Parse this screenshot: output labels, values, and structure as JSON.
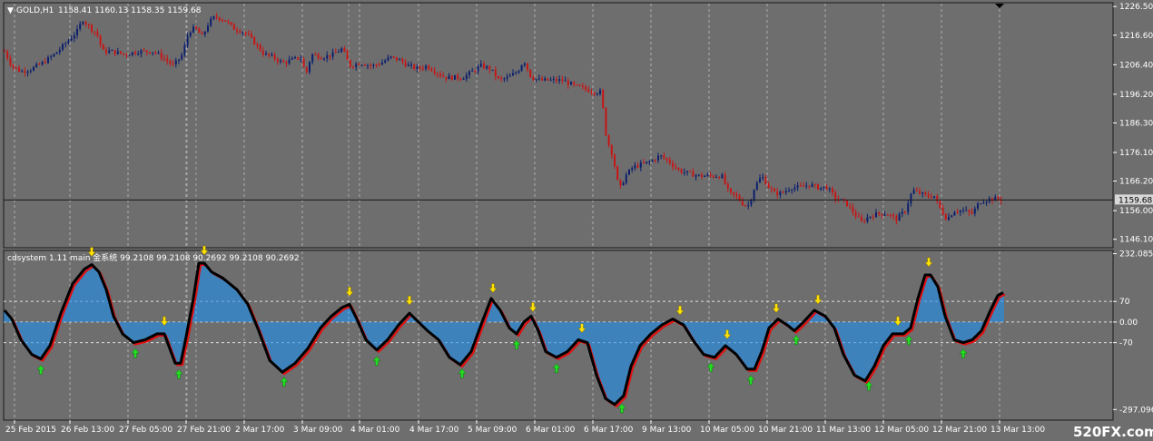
{
  "window": {
    "symbol_timeframe": "GOLD,H1",
    "ohlc": "1158.41 1160.13 1158.35 1159.68",
    "dropdown_glyph": "▼"
  },
  "indicator": {
    "label": "cdsystem 1.11 main 金系统 99.2108 99.2108 90.2692 99.2108 90.2692"
  },
  "watermark": "520FX.com",
  "colors": {
    "background": "#6e6e6e",
    "grid": "#c8c8c8",
    "bull_candle": "#0b1f6e",
    "bear_candle": "#c81515",
    "histogram": "#1f8ff0",
    "main_line": "#000000",
    "signal_line": "#e01010",
    "sell_arrow": "#ffe100",
    "buy_arrow": "#22dd22",
    "price_label_bg": "#d8d8d8"
  },
  "chart_data": [
    {
      "type": "candlestick",
      "title": "GOLD,H1",
      "ylim": [
        1143.5,
        1227.5
      ],
      "y_ticks": [
        "1226.50",
        "1216.60",
        "1206.40",
        "1196.20",
        "1186.30",
        "1176.10",
        "1166.20",
        "1156.00",
        "1146.10"
      ],
      "current_price_label": "1159.68",
      "current_price": 1159.68,
      "grid": true,
      "close_path": [
        [
          0,
          1211
        ],
        [
          8,
          1206
        ],
        [
          18,
          1204
        ],
        [
          30,
          1205
        ],
        [
          42,
          1207
        ],
        [
          55,
          1210
        ],
        [
          68,
          1214
        ],
        [
          80,
          1218
        ],
        [
          86,
          1222
        ],
        [
          95,
          1219
        ],
        [
          102,
          1217
        ],
        [
          108,
          1211
        ],
        [
          118,
          1211
        ],
        [
          132,
          1210
        ],
        [
          148,
          1211
        ],
        [
          165,
          1211
        ],
        [
          178,
          1208
        ],
        [
          186,
          1206
        ],
        [
          196,
          1210
        ],
        [
          203,
          1218
        ],
        [
          210,
          1219
        ],
        [
          218,
          1216
        ],
        [
          225,
          1221
        ],
        [
          232,
          1223
        ],
        [
          242,
          1222
        ],
        [
          252,
          1219
        ],
        [
          262,
          1218
        ],
        [
          270,
          1216
        ],
        [
          278,
          1213
        ],
        [
          286,
          1210
        ],
        [
          296,
          1209
        ],
        [
          306,
          1207
        ],
        [
          316,
          1208
        ],
        [
          326,
          1209
        ],
        [
          332,
          1203
        ],
        [
          338,
          1210
        ],
        [
          350,
          1209
        ],
        [
          362,
          1210
        ],
        [
          372,
          1212
        ],
        [
          380,
          1206
        ],
        [
          392,
          1207
        ],
        [
          405,
          1206
        ],
        [
          415,
          1207
        ],
        [
          425,
          1209
        ],
        [
          435,
          1208
        ],
        [
          445,
          1206
        ],
        [
          455,
          1205
        ],
        [
          465,
          1206
        ],
        [
          475,
          1204
        ],
        [
          485,
          1202
        ],
        [
          495,
          1202
        ],
        [
          505,
          1202
        ],
        [
          515,
          1204
        ],
        [
          525,
          1206
        ],
        [
          535,
          1205
        ],
        [
          545,
          1201
        ],
        [
          555,
          1202
        ],
        [
          565,
          1204
        ],
        [
          572,
          1208
        ],
        [
          580,
          1202
        ],
        [
          590,
          1201
        ],
        [
          600,
          1201
        ],
        [
          615,
          1201
        ],
        [
          628,
          1199
        ],
        [
          640,
          1198
        ],
        [
          650,
          1197
        ],
        [
          657,
          1197
        ],
        [
          663,
          1181
        ],
        [
          670,
          1175
        ],
        [
          677,
          1163
        ],
        [
          684,
          1168
        ],
        [
          692,
          1171
        ],
        [
          702,
          1172
        ],
        [
          712,
          1173
        ],
        [
          722,
          1175
        ],
        [
          732,
          1173
        ],
        [
          742,
          1170
        ],
        [
          752,
          1169
        ],
        [
          765,
          1168
        ],
        [
          780,
          1168
        ],
        [
          790,
          1168
        ],
        [
          798,
          1162
        ],
        [
          806,
          1161
        ],
        [
          814,
          1158
        ],
        [
          820,
          1158
        ],
        [
          826,
          1164
        ],
        [
          834,
          1168
        ],
        [
          842,
          1164
        ],
        [
          848,
          1162
        ],
        [
          856,
          1162
        ],
        [
          866,
          1164
        ],
        [
          876,
          1164
        ],
        [
          886,
          1165
        ],
        [
          896,
          1164
        ],
        [
          906,
          1164
        ],
        [
          916,
          1160
        ],
        [
          926,
          1159
        ],
        [
          936,
          1155
        ],
        [
          944,
          1152
        ],
        [
          952,
          1154
        ],
        [
          962,
          1155
        ],
        [
          972,
          1155
        ],
        [
          982,
          1153
        ],
        [
          992,
          1156
        ],
        [
          1000,
          1163
        ],
        [
          1008,
          1162
        ],
        [
          1016,
          1161
        ],
        [
          1024,
          1161
        ],
        [
          1030,
          1157
        ],
        [
          1038,
          1153
        ],
        [
          1046,
          1156
        ],
        [
          1056,
          1156
        ],
        [
          1066,
          1155
        ],
        [
          1074,
          1159
        ],
        [
          1084,
          1160
        ],
        [
          1094,
          1160
        ],
        [
          1100,
          1159.68
        ]
      ]
    },
    {
      "type": "oscillator",
      "title": "cdsystem 1.11",
      "ylim": [
        -330,
        240
      ],
      "y_ticks": [
        "232.0856",
        "70",
        "0.00",
        "-70",
        "-297.0963"
      ],
      "levels": [
        70,
        0,
        -70
      ],
      "grid": true,
      "main_line": [
        [
          0,
          40
        ],
        [
          8,
          10
        ],
        [
          18,
          -60
        ],
        [
          30,
          -110
        ],
        [
          40,
          -125
        ],
        [
          50,
          -80
        ],
        [
          62,
          30
        ],
        [
          75,
          130
        ],
        [
          88,
          180
        ],
        [
          96,
          195
        ],
        [
          104,
          170
        ],
        [
          112,
          110
        ],
        [
          120,
          20
        ],
        [
          130,
          -40
        ],
        [
          142,
          -70
        ],
        [
          155,
          -60
        ],
        [
          168,
          -40
        ],
        [
          176,
          -40
        ],
        [
          182,
          -90
        ],
        [
          188,
          -140
        ],
        [
          194,
          -140
        ],
        [
          200,
          -50
        ],
        [
          208,
          80
        ],
        [
          214,
          200
        ],
        [
          220,
          200
        ],
        [
          228,
          170
        ],
        [
          240,
          150
        ],
        [
          256,
          110
        ],
        [
          268,
          60
        ],
        [
          280,
          -30
        ],
        [
          292,
          -130
        ],
        [
          306,
          -170
        ],
        [
          320,
          -140
        ],
        [
          334,
          -90
        ],
        [
          348,
          -20
        ],
        [
          360,
          20
        ],
        [
          372,
          50
        ],
        [
          380,
          60
        ],
        [
          388,
          10
        ],
        [
          398,
          -60
        ],
        [
          410,
          -95
        ],
        [
          422,
          -60
        ],
        [
          434,
          -10
        ],
        [
          446,
          30
        ],
        [
          456,
          0
        ],
        [
          466,
          -30
        ],
        [
          478,
          -60
        ],
        [
          490,
          -120
        ],
        [
          502,
          -145
        ],
        [
          514,
          -100
        ],
        [
          526,
          0
        ],
        [
          536,
          80
        ],
        [
          546,
          40
        ],
        [
          556,
          -20
        ],
        [
          564,
          -40
        ],
        [
          572,
          0
        ],
        [
          580,
          20
        ],
        [
          588,
          -30
        ],
        [
          596,
          -100
        ],
        [
          608,
          -120
        ],
        [
          620,
          -100
        ],
        [
          632,
          -60
        ],
        [
          642,
          -70
        ],
        [
          652,
          -180
        ],
        [
          662,
          -260
        ],
        [
          672,
          -280
        ],
        [
          682,
          -250
        ],
        [
          690,
          -150
        ],
        [
          700,
          -80
        ],
        [
          712,
          -40
        ],
        [
          724,
          -10
        ],
        [
          736,
          10
        ],
        [
          748,
          -10
        ],
        [
          758,
          -60
        ],
        [
          770,
          -110
        ],
        [
          782,
          -120
        ],
        [
          794,
          -80
        ],
        [
          806,
          -110
        ],
        [
          818,
          -160
        ],
        [
          826,
          -160
        ],
        [
          834,
          -100
        ],
        [
          842,
          -20
        ],
        [
          852,
          10
        ],
        [
          862,
          -10
        ],
        [
          870,
          -30
        ],
        [
          880,
          0
        ],
        [
          892,
          40
        ],
        [
          904,
          20
        ],
        [
          914,
          -20
        ],
        [
          924,
          -110
        ],
        [
          936,
          -180
        ],
        [
          948,
          -200
        ],
        [
          958,
          -150
        ],
        [
          968,
          -80
        ],
        [
          978,
          -40
        ],
        [
          990,
          -40
        ],
        [
          998,
          -20
        ],
        [
          1006,
          80
        ],
        [
          1014,
          160
        ],
        [
          1020,
          160
        ],
        [
          1028,
          120
        ],
        [
          1036,
          20
        ],
        [
          1046,
          -60
        ],
        [
          1056,
          -70
        ],
        [
          1066,
          -60
        ],
        [
          1076,
          -30
        ],
        [
          1086,
          40
        ],
        [
          1094,
          90
        ],
        [
          1100,
          100
        ]
      ],
      "sell_signals": [
        96,
        176,
        220,
        380,
        446,
        538,
        582,
        636,
        744,
        796,
        850,
        896,
        984,
        1018
      ],
      "buy_signals": [
        40,
        144,
        192,
        308,
        410,
        504,
        564,
        608,
        680,
        778,
        822,
        872,
        952,
        996,
        1056
      ]
    }
  ],
  "x_axis": {
    "labels": [
      "25 Feb 2015",
      "26 Feb 13:00",
      "27 Feb 05:00",
      "27 Feb 21:00",
      "2 Mar 17:00",
      "3 Mar 09:00",
      "4 Mar 01:00",
      "4 Mar 17:00",
      "5 Mar 09:00",
      "6 Mar 01:00",
      "6 Mar 17:00",
      "9 Mar 13:00",
      "10 Mar 05:00",
      "10 Mar 21:00",
      "11 Mar 13:00",
      "12 Mar 05:00",
      "12 Mar 21:00",
      "13 Mar 13:00"
    ]
  }
}
